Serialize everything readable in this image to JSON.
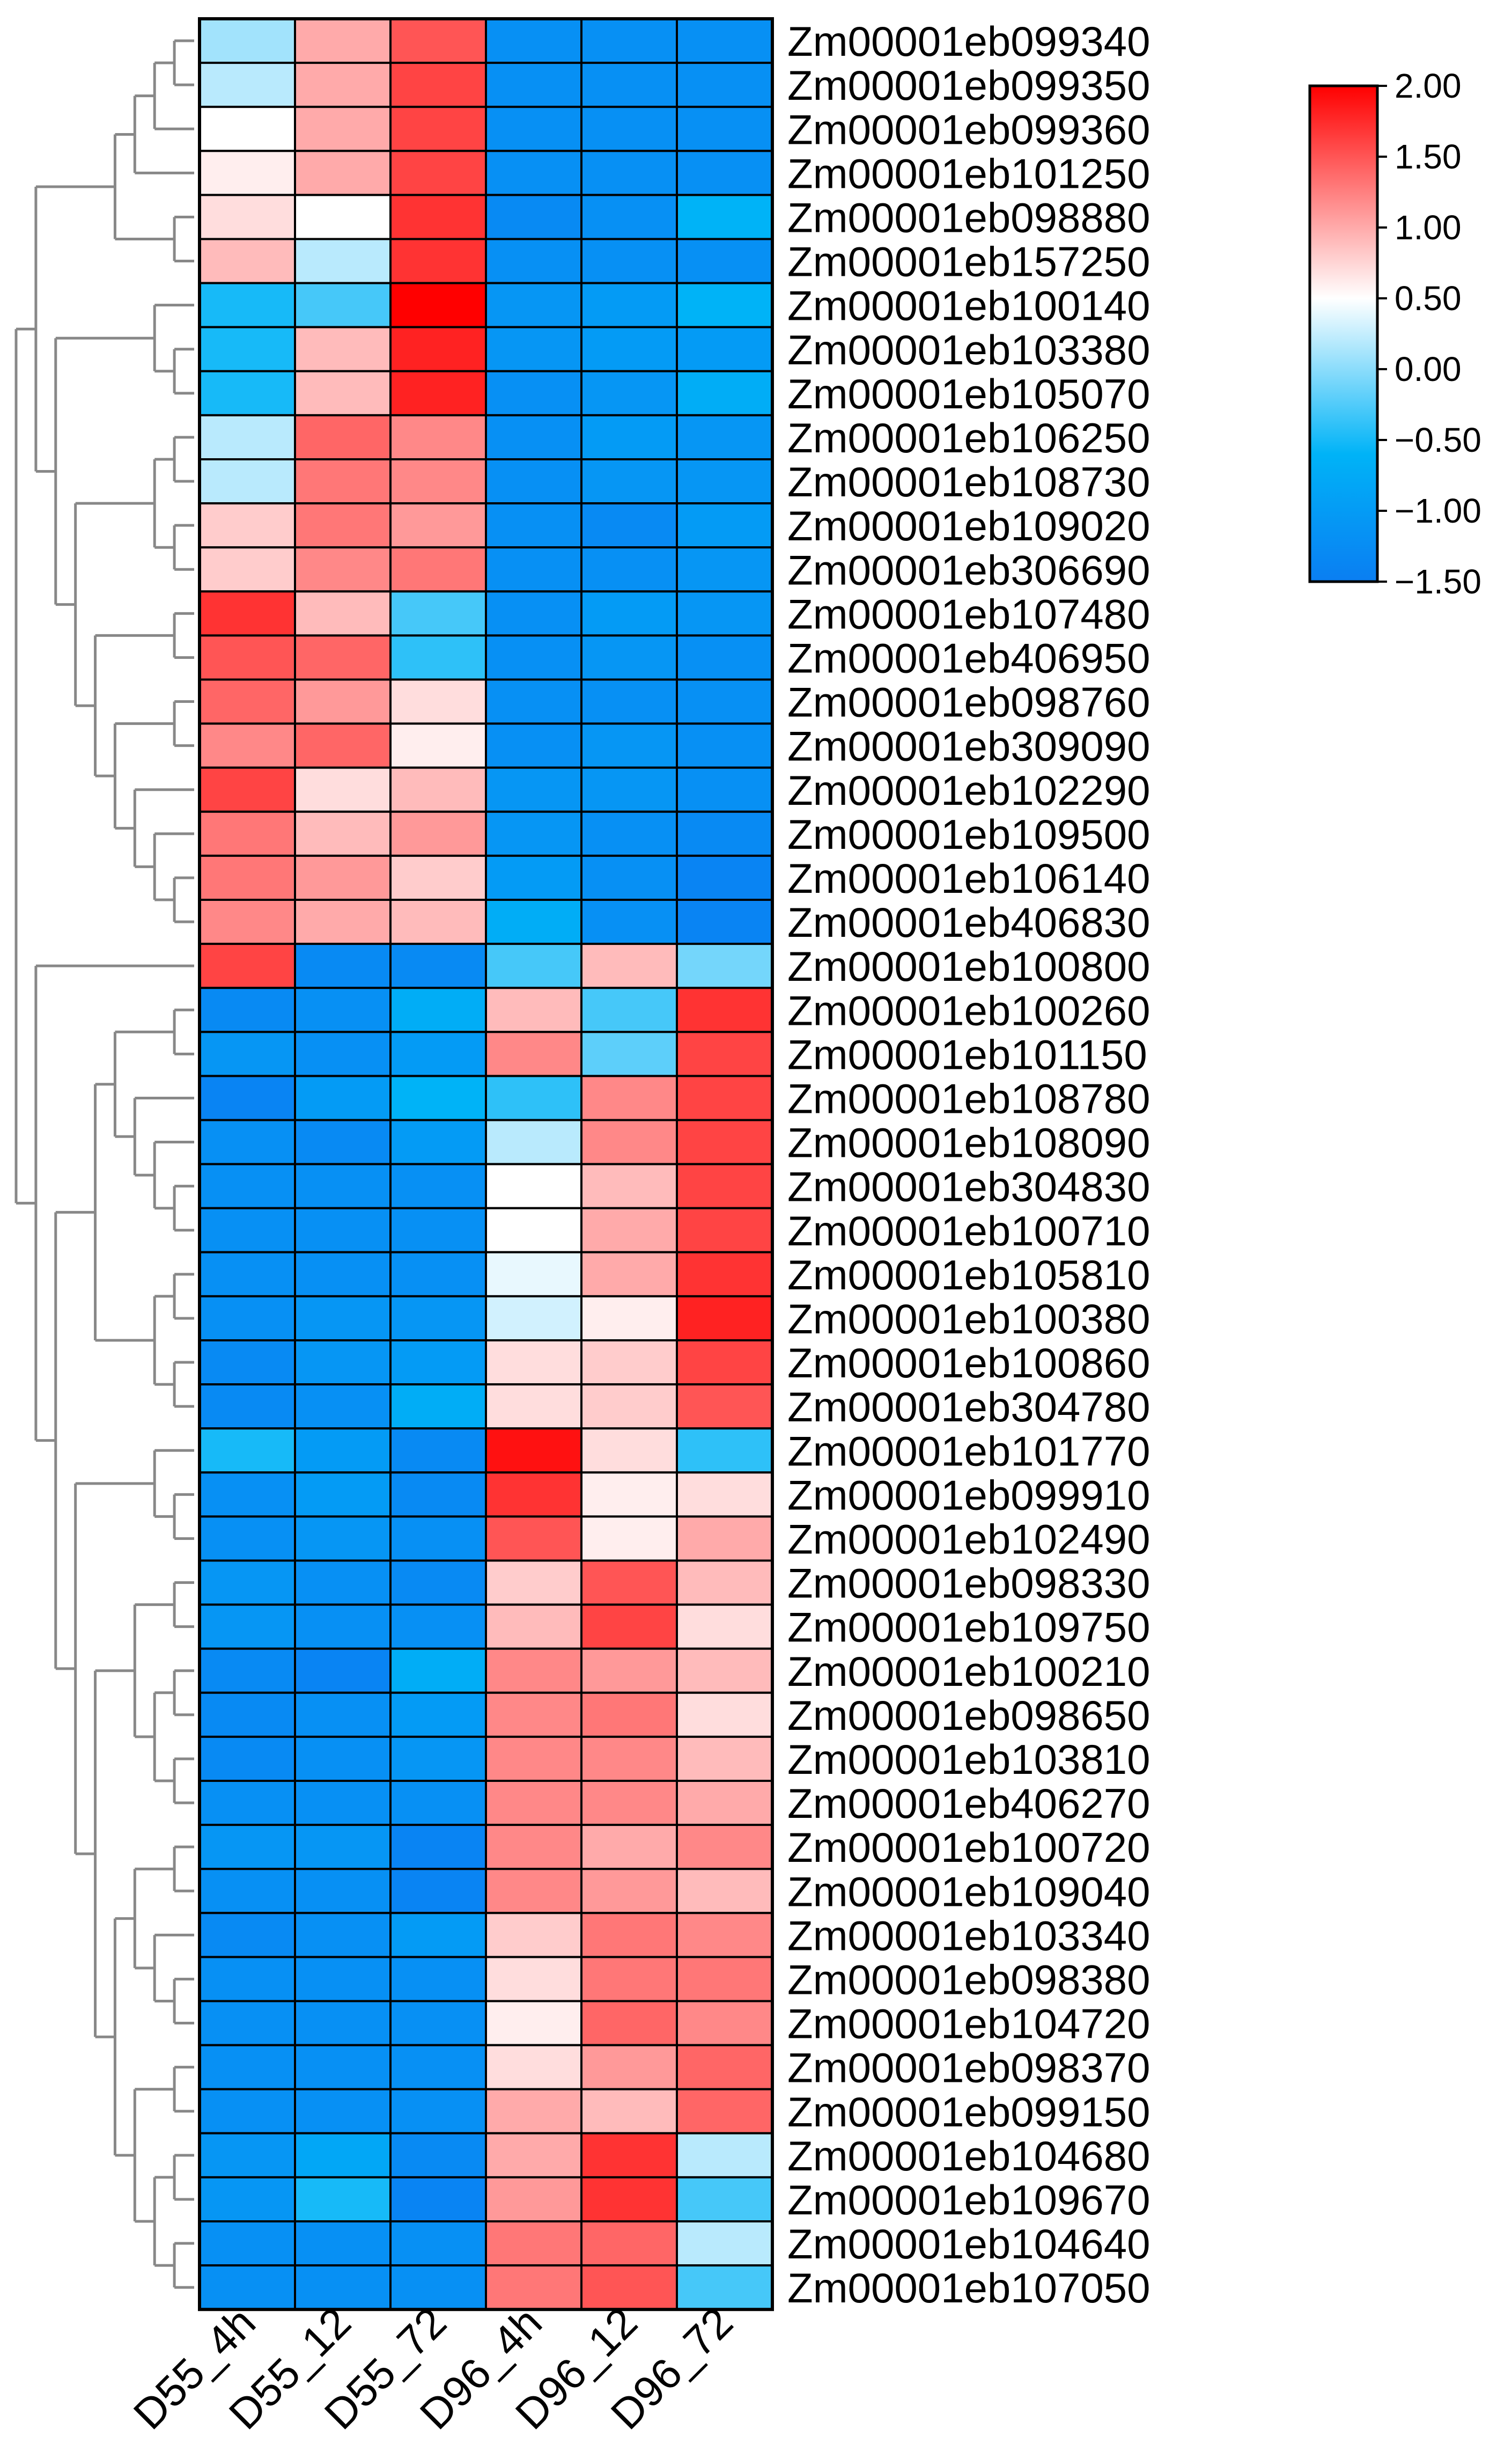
{
  "chart_data": {
    "type": "heatmap",
    "title": "",
    "columns": [
      "D55_4h",
      "D55_12",
      "D55_72",
      "D96_4h",
      "D96_12",
      "D96_72"
    ],
    "rows": [
      {
        "name": "Zm00001eb099340",
        "values": [
          0.1,
          1.0,
          1.5,
          -1.2,
          -1.2,
          -1.2
        ]
      },
      {
        "name": "Zm00001eb099350",
        "values": [
          0.2,
          1.0,
          1.6,
          -1.2,
          -1.2,
          -1.2
        ]
      },
      {
        "name": "Zm00001eb099360",
        "values": [
          0.5,
          1.0,
          1.6,
          -1.2,
          -1.2,
          -1.2
        ]
      },
      {
        "name": "Zm00001eb101250",
        "values": [
          0.6,
          1.0,
          1.6,
          -1.2,
          -1.2,
          -1.2
        ]
      },
      {
        "name": "Zm00001eb098880",
        "values": [
          0.7,
          0.5,
          1.7,
          -1.3,
          -1.2,
          -0.6
        ]
      },
      {
        "name": "Zm00001eb157250",
        "values": [
          0.9,
          0.2,
          1.7,
          -1.2,
          -1.2,
          -1.2
        ]
      },
      {
        "name": "Zm00001eb100140",
        "values": [
          -0.5,
          -0.3,
          2.0,
          -1.1,
          -1.0,
          -0.6
        ]
      },
      {
        "name": "Zm00001eb103380",
        "values": [
          -0.5,
          0.9,
          1.8,
          -1.1,
          -1.0,
          -1.0
        ]
      },
      {
        "name": "Zm00001eb105070",
        "values": [
          -0.5,
          0.9,
          1.8,
          -1.2,
          -1.1,
          -0.7
        ]
      },
      {
        "name": "Zm00001eb106250",
        "values": [
          0.2,
          1.4,
          1.2,
          -1.2,
          -1.0,
          -1.1
        ]
      },
      {
        "name": "Zm00001eb108730",
        "values": [
          0.2,
          1.3,
          1.2,
          -1.2,
          -1.1,
          -1.1
        ]
      },
      {
        "name": "Zm00001eb109020",
        "values": [
          0.8,
          1.3,
          1.1,
          -1.2,
          -1.3,
          -1.0
        ]
      },
      {
        "name": "Zm00001eb306690",
        "values": [
          0.8,
          1.2,
          1.3,
          -1.2,
          -1.2,
          -1.1
        ]
      },
      {
        "name": "Zm00001eb107480",
        "values": [
          1.7,
          0.9,
          -0.3,
          -1.2,
          -1.0,
          -1.1
        ]
      },
      {
        "name": "Zm00001eb406950",
        "values": [
          1.5,
          1.4,
          -0.4,
          -1.2,
          -1.1,
          -1.2
        ]
      },
      {
        "name": "Zm00001eb098760",
        "values": [
          1.4,
          1.1,
          0.7,
          -1.2,
          -1.2,
          -1.2
        ]
      },
      {
        "name": "Zm00001eb309090",
        "values": [
          1.2,
          1.4,
          0.6,
          -1.2,
          -1.1,
          -1.2
        ]
      },
      {
        "name": "Zm00001eb102290",
        "values": [
          1.6,
          0.7,
          0.9,
          -1.1,
          -1.1,
          -1.2
        ]
      },
      {
        "name": "Zm00001eb109500",
        "values": [
          1.3,
          0.9,
          1.1,
          -1.1,
          -1.2,
          -1.3
        ]
      },
      {
        "name": "Zm00001eb106140",
        "values": [
          1.3,
          1.1,
          0.8,
          -1.0,
          -1.2,
          -1.4
        ]
      },
      {
        "name": "Zm00001eb406830",
        "values": [
          1.2,
          1.0,
          0.9,
          -0.7,
          -1.2,
          -1.4
        ]
      },
      {
        "name": "Zm00001eb100800",
        "values": [
          1.6,
          -1.3,
          -1.3,
          -0.3,
          0.9,
          -0.1
        ]
      },
      {
        "name": "Zm00001eb100260",
        "values": [
          -1.3,
          -1.2,
          -0.7,
          0.9,
          -0.3,
          1.7
        ]
      },
      {
        "name": "Zm00001eb101150",
        "values": [
          -1.1,
          -1.2,
          -1.0,
          1.2,
          -0.2,
          1.6
        ]
      },
      {
        "name": "Zm00001eb108780",
        "values": [
          -1.4,
          -1.0,
          -0.6,
          -0.4,
          1.2,
          1.6
        ]
      },
      {
        "name": "Zm00001eb108090",
        "values": [
          -1.2,
          -1.3,
          -1.0,
          0.2,
          1.2,
          1.6
        ]
      },
      {
        "name": "Zm00001eb304830",
        "values": [
          -1.2,
          -1.2,
          -1.2,
          0.5,
          0.9,
          1.6
        ]
      },
      {
        "name": "Zm00001eb100710",
        "values": [
          -1.2,
          -1.2,
          -1.2,
          0.5,
          1.0,
          1.6
        ]
      },
      {
        "name": "Zm00001eb105810",
        "values": [
          -1.2,
          -1.2,
          -1.2,
          0.4,
          1.0,
          1.7
        ]
      },
      {
        "name": "Zm00001eb100380",
        "values": [
          -1.2,
          -1.1,
          -1.1,
          0.3,
          0.6,
          1.8
        ]
      },
      {
        "name": "Zm00001eb100860",
        "values": [
          -1.3,
          -1.1,
          -1.0,
          0.7,
          0.8,
          1.6
        ]
      },
      {
        "name": "Zm00001eb304780",
        "values": [
          -1.3,
          -1.2,
          -0.7,
          0.7,
          0.8,
          1.5
        ]
      },
      {
        "name": "Zm00001eb101770",
        "values": [
          -0.5,
          -1.0,
          -1.3,
          1.9,
          0.7,
          -0.4
        ]
      },
      {
        "name": "Zm00001eb099910",
        "values": [
          -1.2,
          -1.0,
          -1.3,
          1.7,
          0.6,
          0.7
        ]
      },
      {
        "name": "Zm00001eb102490",
        "values": [
          -1.2,
          -1.1,
          -1.2,
          1.5,
          0.6,
          1.0
        ]
      },
      {
        "name": "Zm00001eb098330",
        "values": [
          -1.1,
          -1.2,
          -1.3,
          0.8,
          1.5,
          0.9
        ]
      },
      {
        "name": "Zm00001eb109750",
        "values": [
          -1.1,
          -1.2,
          -1.2,
          0.9,
          1.6,
          0.7
        ]
      },
      {
        "name": "Zm00001eb100210",
        "values": [
          -1.3,
          -1.4,
          -0.7,
          1.2,
          1.1,
          0.9
        ]
      },
      {
        "name": "Zm00001eb098650",
        "values": [
          -1.3,
          -1.2,
          -1.0,
          1.2,
          1.3,
          0.7
        ]
      },
      {
        "name": "Zm00001eb103810",
        "values": [
          -1.3,
          -1.2,
          -1.1,
          1.2,
          1.2,
          0.9
        ]
      },
      {
        "name": "Zm00001eb406270",
        "values": [
          -1.2,
          -1.2,
          -1.2,
          1.2,
          1.2,
          1.0
        ]
      },
      {
        "name": "Zm00001eb100720",
        "values": [
          -1.1,
          -1.1,
          -1.4,
          1.2,
          1.0,
          1.2
        ]
      },
      {
        "name": "Zm00001eb109040",
        "values": [
          -1.2,
          -1.2,
          -1.4,
          1.2,
          1.1,
          0.9
        ]
      },
      {
        "name": "Zm00001eb103340",
        "values": [
          -1.3,
          -1.2,
          -1.0,
          0.8,
          1.3,
          1.2
        ]
      },
      {
        "name": "Zm00001eb098380",
        "values": [
          -1.2,
          -1.2,
          -1.2,
          0.7,
          1.3,
          1.3
        ]
      },
      {
        "name": "Zm00001eb104720",
        "values": [
          -1.2,
          -1.2,
          -1.2,
          0.6,
          1.4,
          1.2
        ]
      },
      {
        "name": "Zm00001eb098370",
        "values": [
          -1.2,
          -1.2,
          -1.2,
          0.7,
          1.1,
          1.4
        ]
      },
      {
        "name": "Zm00001eb099150",
        "values": [
          -1.2,
          -1.2,
          -1.2,
          1.0,
          0.9,
          1.4
        ]
      },
      {
        "name": "Zm00001eb104680",
        "values": [
          -1.1,
          -0.8,
          -1.3,
          1.0,
          1.7,
          0.2
        ]
      },
      {
        "name": "Zm00001eb109670",
        "values": [
          -1.1,
          -0.5,
          -1.4,
          1.1,
          1.7,
          -0.3
        ]
      },
      {
        "name": "Zm00001eb104640",
        "values": [
          -1.2,
          -1.2,
          -1.2,
          1.3,
          1.4,
          0.2
        ]
      },
      {
        "name": "Zm00001eb107050",
        "values": [
          -1.2,
          -1.2,
          -1.2,
          1.3,
          1.5,
          -0.3
        ]
      }
    ],
    "colorbar": {
      "min": -1.5,
      "max": 2.0,
      "ticks": [
        "2.00",
        "1.50",
        "1.00",
        "0.50",
        "0.00",
        "−0.50",
        "−1.00",
        "−1.50"
      ],
      "colors": {
        "low": "#0a7ef2",
        "mid_low": "#00b3f7",
        "mid": "#ffffff",
        "high": "#ff0000"
      }
    },
    "dendrogram": {
      "leaf_order": "row order",
      "line_color": "#888888"
    }
  }
}
